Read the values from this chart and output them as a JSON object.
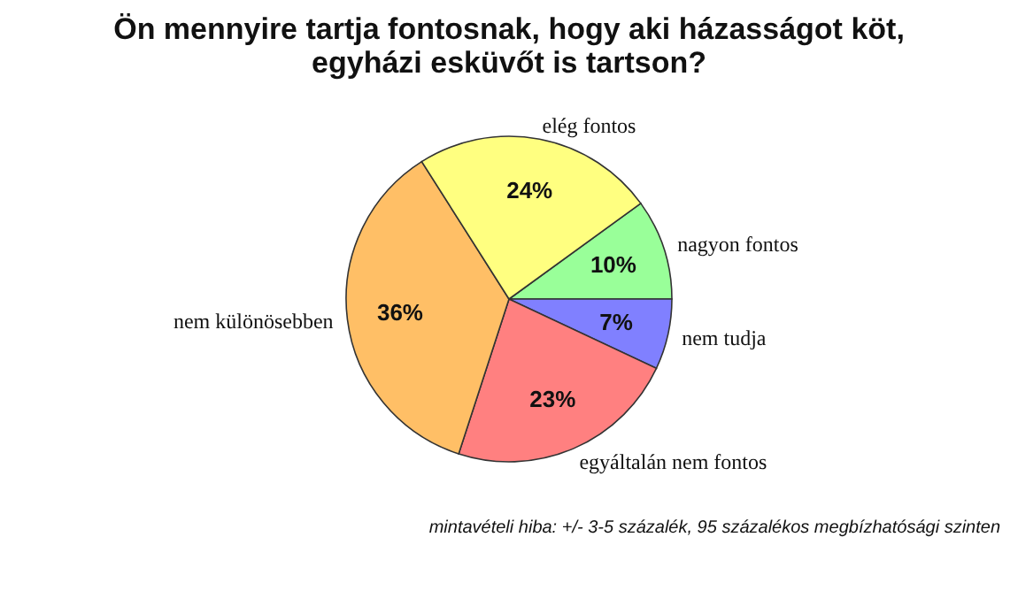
{
  "chart_data": {
    "type": "pie",
    "title": [
      "Ön mennyire tartja fontosnak, hogy aki házasságot köt,",
      "egyházi esküvőt is tartson?"
    ],
    "categories": [
      "nagyon fontos",
      "nem tudja",
      "egyáltalán nem fontos",
      "nem különösebben",
      "elég fontos"
    ],
    "values": [
      10,
      7,
      23,
      36,
      24
    ],
    "colors": [
      "#99ff99",
      "#8080ff",
      "#ff8080",
      "#ffbf66",
      "#ffff80"
    ],
    "value_labels": [
      "10%",
      "7%",
      "23%",
      "36%",
      "24%"
    ],
    "annotations": [
      "mintavételi hiba: +/- 3-5 százalék, 95 százalékos megbízhatósági szinten"
    ],
    "legend": false
  }
}
